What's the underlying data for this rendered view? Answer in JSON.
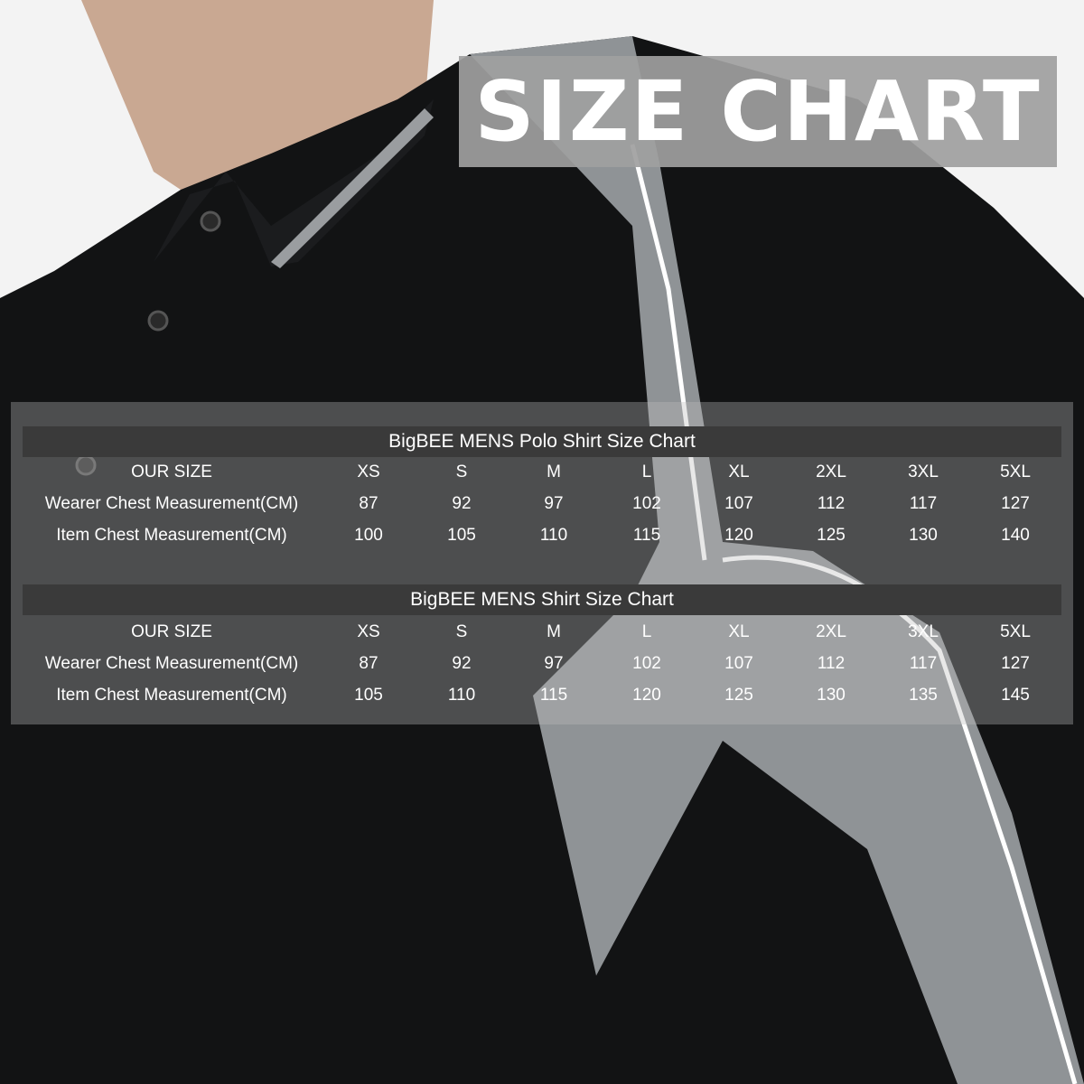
{
  "title": "SIZE CHART",
  "tables": [
    {
      "caption": "BigBEE MENS Polo Shirt Size Chart",
      "rows": [
        {
          "label": "OUR SIZE",
          "values": [
            "XS",
            "S",
            "M",
            "L",
            "XL",
            "2XL",
            "3XL",
            "5XL"
          ]
        },
        {
          "label": "Wearer Chest Measurement(CM)",
          "values": [
            "87",
            "92",
            "97",
            "102",
            "107",
            "112",
            "117",
            "127"
          ]
        },
        {
          "label": "Item Chest Measurement(CM)",
          "values": [
            "100",
            "105",
            "110",
            "115",
            "120",
            "125",
            "130",
            "140"
          ]
        }
      ]
    },
    {
      "caption": "BigBEE MENS Shirt Size Chart",
      "rows": [
        {
          "label": "OUR SIZE",
          "values": [
            "XS",
            "S",
            "M",
            "L",
            "XL",
            "2XL",
            "3XL",
            "5XL"
          ]
        },
        {
          "label": "Wearer Chest Measurement(CM)",
          "values": [
            "87",
            "92",
            "97",
            "102",
            "107",
            "112",
            "117",
            "127"
          ]
        },
        {
          "label": "Item Chest Measurement(CM)",
          "values": [
            "105",
            "110",
            "115",
            "120",
            "125",
            "130",
            "135",
            "145"
          ]
        }
      ]
    }
  ],
  "colors": {
    "shirt": "#111111",
    "panel_gray": "#8f9396",
    "bar": "#3a3a3a",
    "title_bg": "#a0a0a0"
  }
}
